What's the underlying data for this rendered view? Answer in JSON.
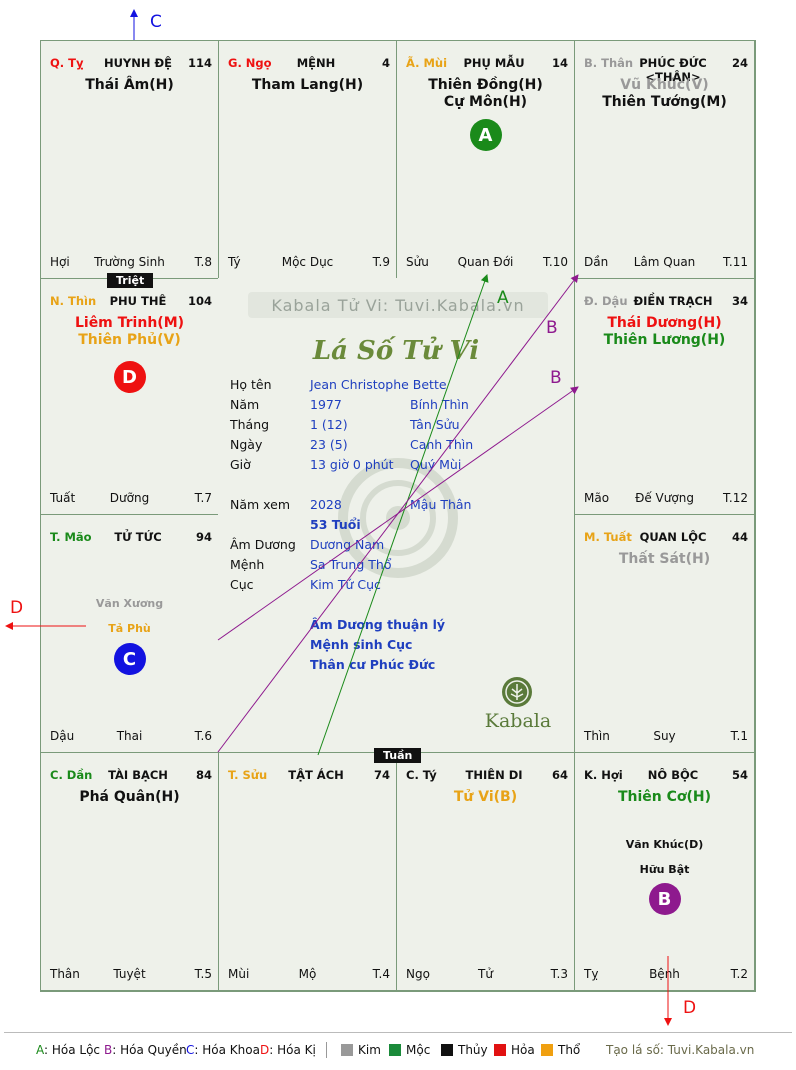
{
  "palaces": [
    {
      "id": "ty",
      "can": "Q. Tỵ",
      "can_color": "#e11",
      "name": "HUYNH ĐỆ",
      "num": "114",
      "stars": [
        {
          "t": "Thái Âm(H)",
          "c": "#111"
        }
      ],
      "bot": [
        "Hợi",
        "Trường Sinh",
        "T.8"
      ]
    },
    {
      "id": "ngo",
      "can": "G. Ngọ",
      "can_color": "#e11",
      "name": "MỆNH",
      "num": "4",
      "stars": [
        {
          "t": "Tham Lang(H)",
          "c": "#111"
        }
      ],
      "bot": [
        "Tý",
        "Mộc Dục",
        "T.9"
      ]
    },
    {
      "id": "mui",
      "can": "Ã. Mùi",
      "can_color": "#e8a317",
      "name": "PHỤ MẪU",
      "num": "14",
      "stars": [
        {
          "t": "Thiên Đồng(H)",
          "c": "#111"
        },
        {
          "t": "Cự Môn(H)",
          "c": "#111"
        }
      ],
      "bot": [
        "Sửu",
        "Quan Đới",
        "T.10"
      ],
      "circle": {
        "t": "A",
        "c": "#1a8a1a"
      }
    },
    {
      "id": "than",
      "can": "B. Thân",
      "can_color": "#999",
      "name": "PHÚC ĐỨC <THÂN>",
      "num": "24",
      "stars": [
        {
          "t": "Vũ Khúc(V)",
          "c": "#999"
        },
        {
          "t": "Thiên Tướng(M)",
          "c": "#111"
        }
      ],
      "bot": [
        "Dần",
        "Lâm Quan",
        "T.11"
      ]
    },
    {
      "id": "thin",
      "can": "N. Thìn",
      "can_color": "#e8a317",
      "name": "PHU THÊ",
      "num": "104",
      "stars": [
        {
          "t": "Liêm Trinh(M)",
          "c": "#e11"
        },
        {
          "t": "Thiên Phủ(V)",
          "c": "#e8a317"
        }
      ],
      "bot": [
        "Tuất",
        "Dưỡng",
        "T.7"
      ],
      "circle": {
        "t": "D",
        "c": "#e11"
      }
    },
    {
      "id": "dau",
      "can": "Đ. Dậu",
      "can_color": "#999",
      "name": "ĐIỀN TRẠCH",
      "num": "34",
      "stars": [
        {
          "t": "Thái Dương(H)",
          "c": "#e11"
        },
        {
          "t": "Thiên Lương(H)",
          "c": "#1a8a1a"
        }
      ],
      "bot": [
        "Mão",
        "Đế Vượng",
        "T.12"
      ]
    },
    {
      "id": "mao",
      "can": "T. Mão",
      "can_color": "#1a8a1a",
      "name": "TỬ TỨC",
      "num": "94",
      "stars": [],
      "minors": [
        {
          "t": "Văn Xương",
          "c": "#999"
        },
        {
          "t": "Tả Phù",
          "c": "#e8a317"
        }
      ],
      "bot": [
        "Dậu",
        "Thai",
        "T.6"
      ],
      "circle": {
        "t": "C",
        "c": "#1212e0"
      }
    },
    {
      "id": "tuat",
      "can": "M. Tuất",
      "can_color": "#e8a317",
      "name": "QUAN LỘC",
      "num": "44",
      "stars": [
        {
          "t": "Thất Sát(H)",
          "c": "#999"
        }
      ],
      "bot": [
        "Thìn",
        "Suy",
        "T.1"
      ]
    },
    {
      "id": "dan",
      "can": "C. Dần",
      "can_color": "#1a8a1a",
      "name": "TÀI BẠCH",
      "num": "84",
      "stars": [
        {
          "t": "Phá Quân(H)",
          "c": "#111"
        }
      ],
      "bot": [
        "Thân",
        "Tuyệt",
        "T.5"
      ]
    },
    {
      "id": "suu",
      "can": "T. Sửu",
      "can_color": "#e8a317",
      "name": "TẬT ÁCH",
      "num": "74",
      "stars": [],
      "bot": [
        "Mùi",
        "Mộ",
        "T.4"
      ]
    },
    {
      "id": "ty2",
      "can": "C. Tý",
      "can_color": "#111",
      "name": "THIÊN DI",
      "num": "64",
      "stars": [
        {
          "t": "Tử Vi(B)",
          "c": "#e8a317"
        }
      ],
      "bot": [
        "Ngọ",
        "Tử",
        "T.3"
      ]
    },
    {
      "id": "hoi",
      "can": "K. Hợi",
      "can_color": "#111",
      "name": "NÔ BỘC",
      "num": "54",
      "stars": [
        {
          "t": "Thiên Cơ(H)",
          "c": "#1a8a1a"
        }
      ],
      "minors": [
        {
          "t": "Văn Khúc(D)",
          "c": "#111"
        },
        {
          "t": "Hữu Bật",
          "c": "#111"
        }
      ],
      "bot": [
        "Tỵ",
        "Bệnh",
        "T.2"
      ],
      "circle": {
        "t": "B",
        "c": "#8e1a8e"
      }
    }
  ],
  "tags": {
    "triet": "Triệt",
    "tuan": "Tuần"
  },
  "center": {
    "brand": "Kabala Tử Vi: Tuvi.Kabala.vn",
    "title": "Lá Số Tử Vi",
    "rows": [
      {
        "label": "Họ tên",
        "v1": "Jean Christophe Bette",
        "v2": ""
      },
      {
        "label": "Năm",
        "v1": "1977",
        "v2": "Bính Thìn"
      },
      {
        "label": "Tháng",
        "v1": "1  (12)",
        "v2": "Tân Sửu"
      },
      {
        "label": "Ngày",
        "v1": "23  (5)",
        "v2": "Canh Thìn"
      },
      {
        "label": "Giờ",
        "v1": "13 giờ 0 phút",
        "v2": "Quý Mùi"
      }
    ],
    "rows2": [
      {
        "label": "Năm xem",
        "v1": "2028",
        "v2": "Mậu Thân"
      },
      {
        "label": "",
        "v1": "53 Tuổi",
        "v2": "",
        "bold": true
      },
      {
        "label": "Âm Dương",
        "v1": "Dương Nam",
        "v2": ""
      },
      {
        "label": "Mệnh",
        "v1": "Sa Trung Thổ",
        "v2": ""
      },
      {
        "label": "Cục",
        "v1": "Kim Tứ Cục",
        "v2": ""
      }
    ],
    "notes": [
      "Âm Dương thuận lý",
      "Mệnh sinh Cục",
      "Thân cư Phúc Đức"
    ],
    "logo": "Kabala"
  },
  "arrows": {
    "a": "A",
    "b1": "B",
    "b2": "B",
    "c": "C",
    "d1": "D",
    "d2": "D"
  },
  "legend": {
    "items": [
      {
        "k": "A",
        "t": ": Hóa Lộc",
        "c": "#1a8a1a"
      },
      {
        "k": "B",
        "t": ": Hóa Quyền",
        "c": "#8e1a8e"
      },
      {
        "k": "C",
        "t": ": Hóa Khoa",
        "c": "#1212e0"
      },
      {
        "k": "D",
        "t": ": Hóa Kị",
        "c": "#e11"
      }
    ],
    "elements": [
      {
        "t": "Kim",
        "c": "#999999"
      },
      {
        "t": "Mộc",
        "c": "#1a8a3a"
      },
      {
        "t": "Thủy",
        "c": "#111111"
      },
      {
        "t": "Hỏa",
        "c": "#e11111"
      },
      {
        "t": "Thổ",
        "c": "#f0a010"
      }
    ],
    "site": "Tạo lá số: Tuvi.Kabala.vn"
  }
}
